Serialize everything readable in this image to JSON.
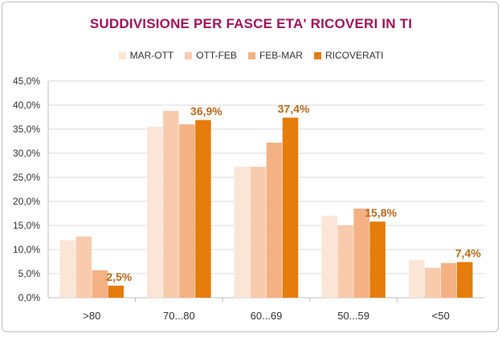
{
  "chart_data": {
    "type": "bar",
    "title": "SUDDIVISIONE PER FASCE ETA' RICOVERI IN TI",
    "categories": [
      ">80",
      "70...80",
      "60...69",
      "50...59",
      "<50"
    ],
    "series": [
      {
        "name": "MAR-OTT",
        "color": "#fbe5d6",
        "values": [
          11.9,
          35.5,
          27.2,
          17.0,
          7.8
        ]
      },
      {
        "name": "OTT-FEB",
        "color": "#f8cbad",
        "values": [
          12.7,
          38.8,
          27.2,
          15.0,
          6.2
        ]
      },
      {
        "name": "FEB-MAR",
        "color": "#f4b183",
        "values": [
          5.7,
          36.0,
          32.2,
          18.5,
          7.2
        ]
      },
      {
        "name": "RICOVERATI",
        "color": "#e57c0c",
        "values": [
          2.5,
          36.9,
          37.4,
          15.8,
          7.4
        ]
      }
    ],
    "data_labels": [
      "2,5%",
      "36,9%",
      "37,4%",
      "15,8%",
      "7,4%"
    ],
    "yticks": [
      "0,0%",
      "5,0%",
      "10,0%",
      "15,0%",
      "20,0%",
      "25,0%",
      "30,0%",
      "35,0%",
      "40,0%",
      "45,0%"
    ],
    "ylim": [
      0,
      45
    ],
    "grid": true,
    "legend_position": "top"
  }
}
